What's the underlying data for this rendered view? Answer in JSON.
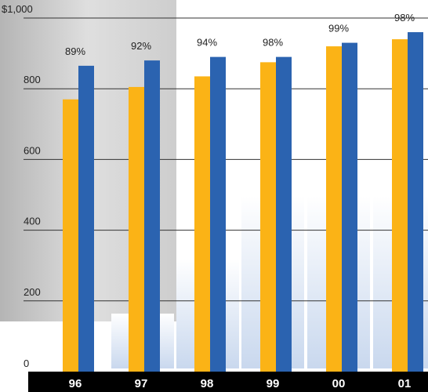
{
  "chart_data": {
    "type": "bar",
    "categories": [
      "96",
      "97",
      "98",
      "99",
      "00",
      "01"
    ],
    "series": [
      {
        "color": "#fbb316",
        "values": [
          770,
          805,
          835,
          875,
          920,
          940
        ]
      },
      {
        "color": "#2b63b0",
        "values": [
          865,
          880,
          890,
          890,
          930,
          960
        ]
      }
    ],
    "ratio_labels": [
      "89%",
      "92%",
      "94%",
      "98%",
      "99%",
      "98%"
    ],
    "ylim": [
      0,
      1000
    ],
    "yticks": [
      0,
      200,
      400,
      600,
      800,
      {
        "value": 1000,
        "label": "$1,000"
      }
    ],
    "grid": true
  }
}
